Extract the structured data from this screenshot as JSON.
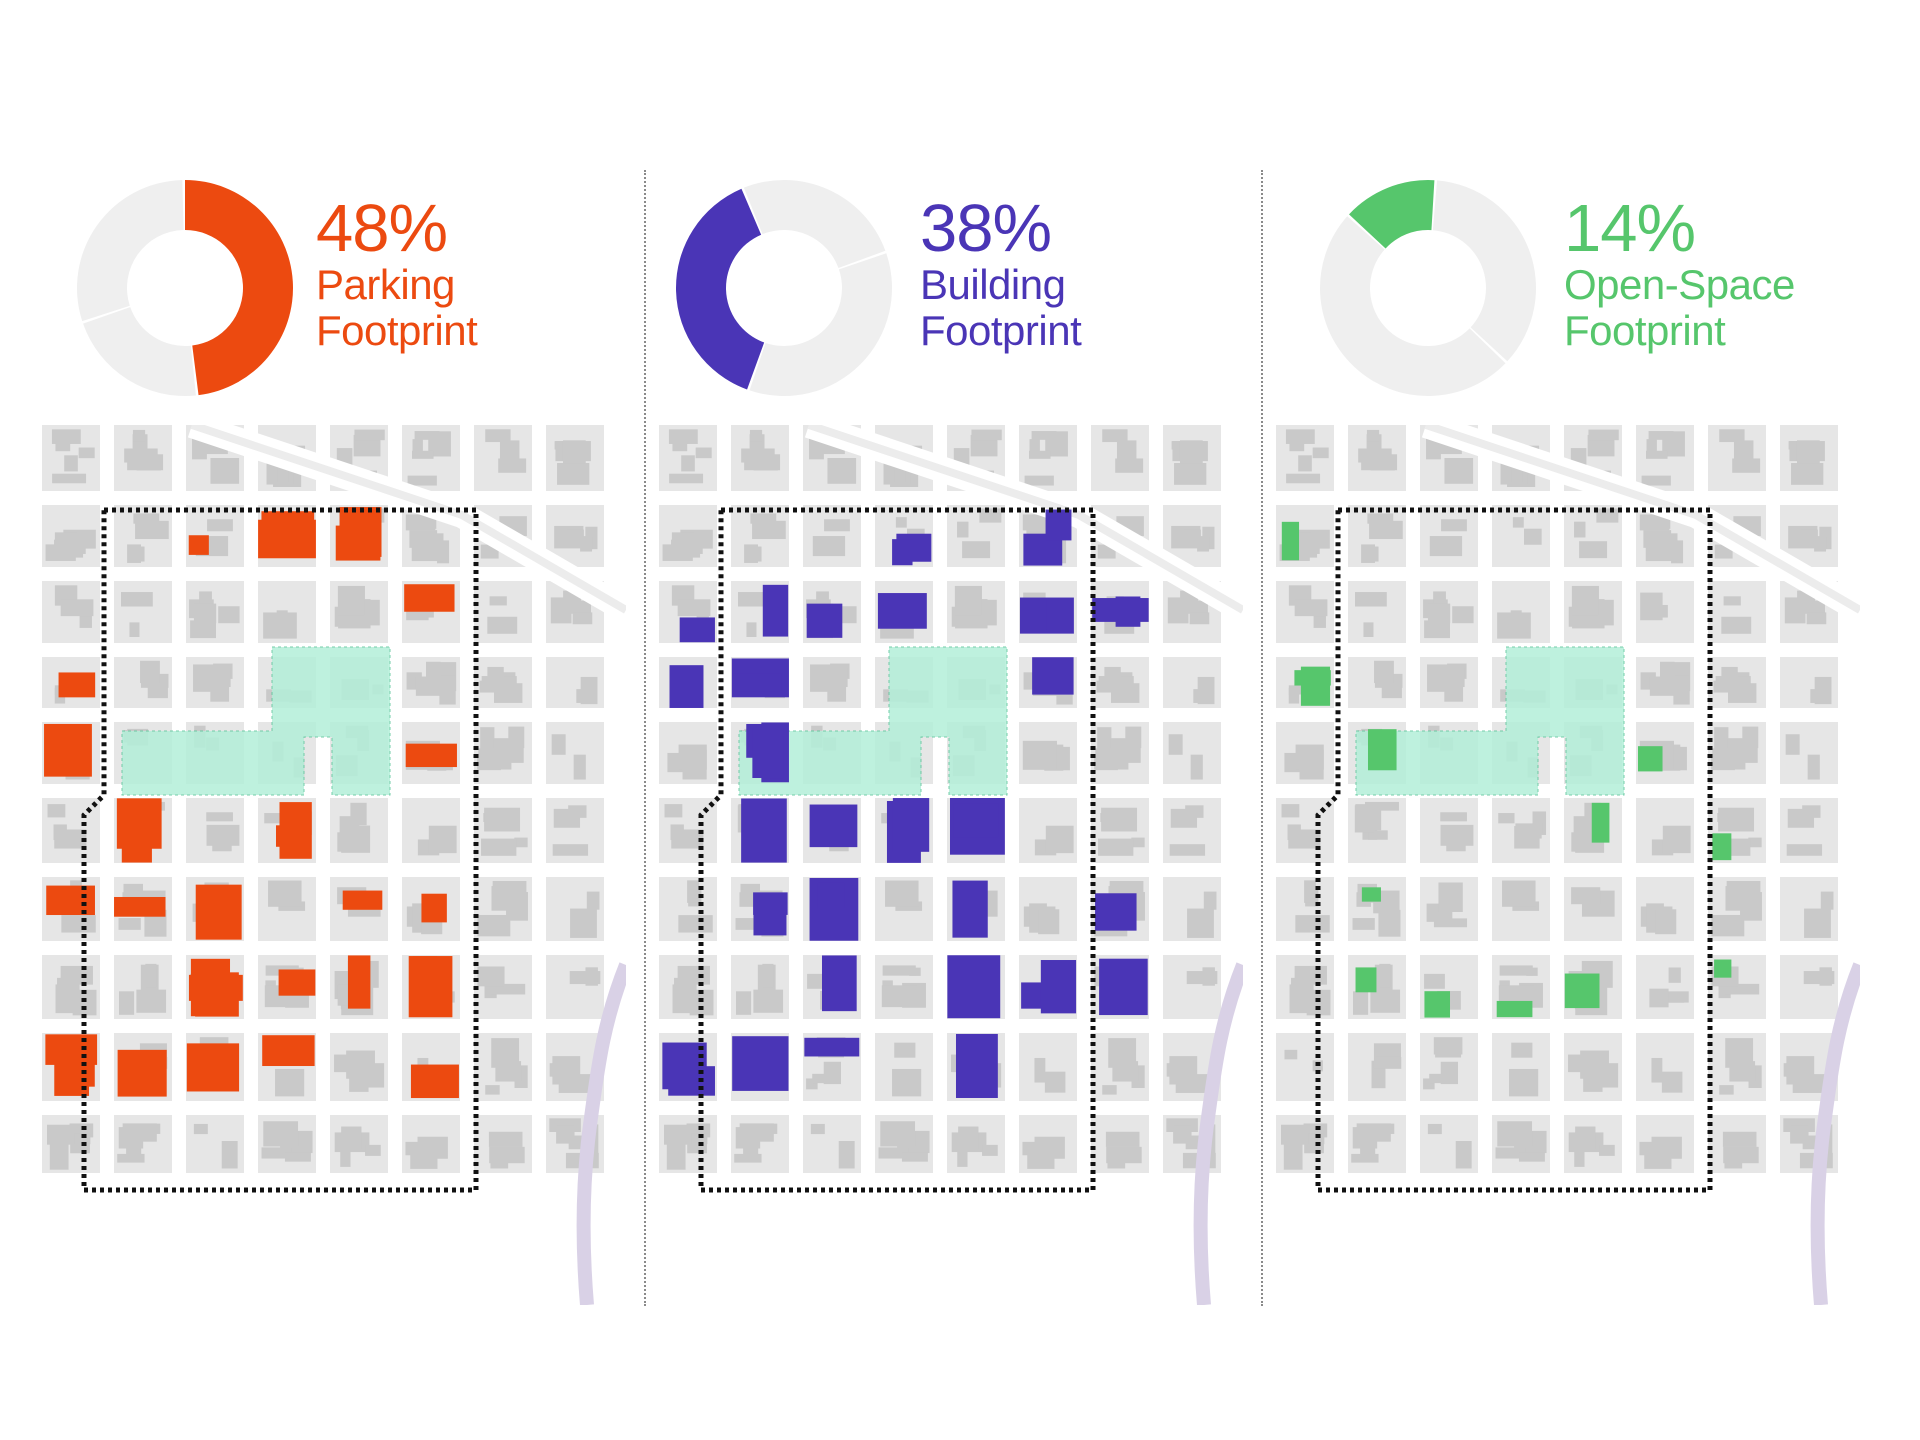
{
  "panels": [
    {
      "id": "parking",
      "percent_text": "48%",
      "line1": "Parking",
      "line2": "Footprint",
      "value": 48,
      "color": "#ec4a10"
    },
    {
      "id": "building",
      "percent_text": "38%",
      "line1": "Building",
      "line2": "Footprint",
      "value": 38,
      "color": "#4a35b6"
    },
    {
      "id": "open-space",
      "percent_text": "14%",
      "line1": "Open-Space",
      "line2": "Footprint",
      "value": 14,
      "color": "#56c66c"
    }
  ],
  "colors": {
    "donut_remainder": "#efefef",
    "block": "#e6e6e6",
    "building_gray": "#c9c9c9",
    "street": "#ffffff",
    "highway": "#ececec",
    "river": "#d9d1e6",
    "study_area_fill": "#b3efd9",
    "boundary": "#111111"
  }
}
